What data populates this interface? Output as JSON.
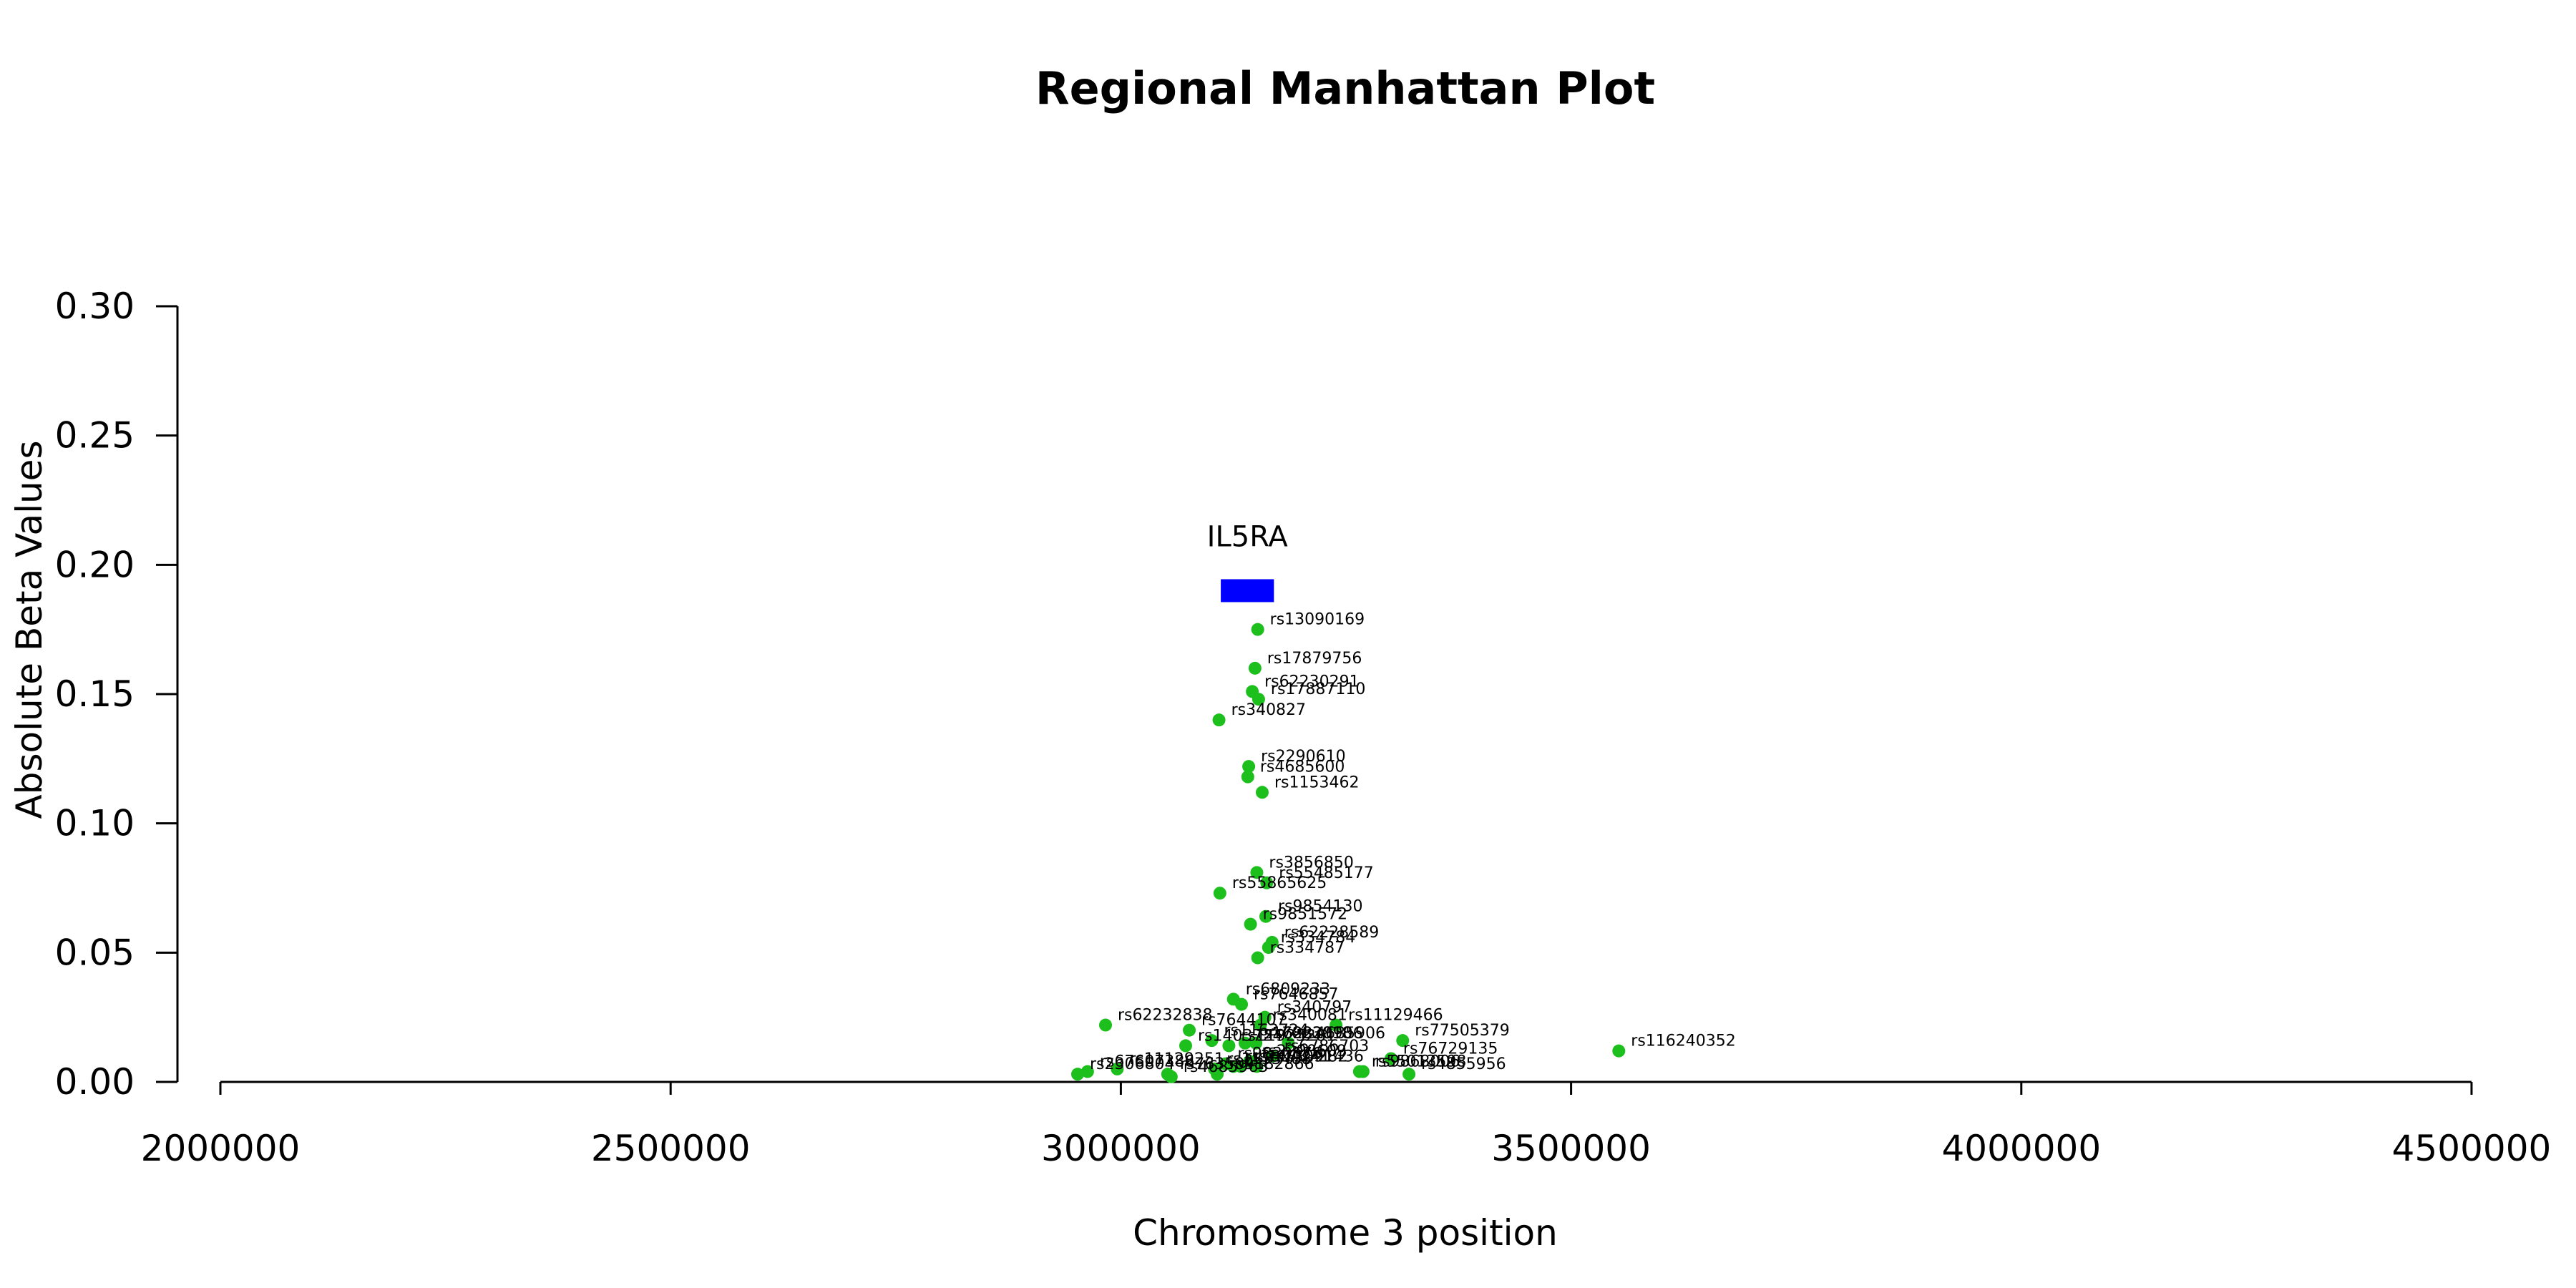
{
  "chart_data": {
    "type": "scatter",
    "title": "Regional Manhattan Plot",
    "xlabel": "Chromosome 3 position",
    "ylabel": "Absolute Beta Values",
    "xlim": [
      2000000,
      4500000
    ],
    "ylim": [
      0,
      0.3
    ],
    "xticks": [
      2000000,
      2500000,
      3000000,
      3500000,
      4000000,
      4500000
    ],
    "yticks": [
      0.0,
      0.05,
      0.1,
      0.15,
      0.2,
      0.25,
      0.3
    ],
    "xtick_labels": [
      "2000000",
      "2500000",
      "3000000",
      "3500000",
      "4000000",
      "4500000"
    ],
    "ytick_labels": [
      "0.00",
      "0.05",
      "0.10",
      "0.15",
      "0.20",
      "0.25",
      "0.30"
    ],
    "grid": false,
    "point_color": "#1dbf1d",
    "gene": {
      "name": "IL5RA",
      "start": 3111000,
      "end": 3170000,
      "y": 0.19,
      "color": "#0000ff"
    },
    "points": [
      {
        "id": "rs13090169",
        "x": 3152000,
        "y": 0.175
      },
      {
        "id": "rs17879756",
        "x": 3149000,
        "y": 0.16
      },
      {
        "id": "rs62230291",
        "x": 3146000,
        "y": 0.151
      },
      {
        "id": "rs17887110",
        "x": 3153000,
        "y": 0.148
      },
      {
        "id": "rs340827",
        "x": 3109000,
        "y": 0.14
      },
      {
        "id": "rs2290610",
        "x": 3142000,
        "y": 0.122
      },
      {
        "id": "rs4685600",
        "x": 3141000,
        "y": 0.118
      },
      {
        "id": "rs1153462",
        "x": 3157000,
        "y": 0.112
      },
      {
        "id": "rs3856850",
        "x": 3151000,
        "y": 0.081
      },
      {
        "id": "rs55485177",
        "x": 3162000,
        "y": 0.077
      },
      {
        "id": "rs55865625",
        "x": 3110000,
        "y": 0.073
      },
      {
        "id": "rs9854130",
        "x": 3161000,
        "y": 0.064
      },
      {
        "id": "rs9851572",
        "x": 3144000,
        "y": 0.061
      },
      {
        "id": "rs62228589",
        "x": 3168000,
        "y": 0.054
      },
      {
        "id": "rs334784",
        "x": 3164000,
        "y": 0.052
      },
      {
        "id": "rs334787",
        "x": 3152000,
        "y": 0.048
      },
      {
        "id": "rs6809233",
        "x": 3125000,
        "y": 0.032
      },
      {
        "id": "rs7646857",
        "x": 3134000,
        "y": 0.03
      },
      {
        "id": "rs340797",
        "x": 3160000,
        "y": 0.025
      },
      {
        "id": "rs11129466",
        "x": 3239000,
        "y": 0.022
      },
      {
        "id": "rs62232838",
        "x": 2983000,
        "y": 0.022
      },
      {
        "id": "rs7644107",
        "x": 3076000,
        "y": 0.02
      },
      {
        "id": "rs340081",
        "x": 3155000,
        "y": 0.022
      },
      {
        "id": "rs77505379",
        "x": 3313000,
        "y": 0.016
      },
      {
        "id": "rs1163724",
        "x": 3101000,
        "y": 0.016
      },
      {
        "id": "rs62228906",
        "x": 3150000,
        "y": 0.015
      },
      {
        "id": "rs11925281",
        "x": 3120000,
        "y": 0.014
      },
      {
        "id": "rs17883018",
        "x": 3138000,
        "y": 0.015
      },
      {
        "id": "rs4685906",
        "x": 3186000,
        "y": 0.015
      },
      {
        "id": "rs1403724",
        "x": 3072000,
        "y": 0.014
      },
      {
        "id": "rs116240352",
        "x": 3553000,
        "y": 0.012
      },
      {
        "id": "rs76729135",
        "x": 3300000,
        "y": 0.009
      },
      {
        "id": "rs6786703",
        "x": 3168000,
        "y": 0.01
      },
      {
        "id": "rs2290609",
        "x": 3143000,
        "y": 0.008
      },
      {
        "id": "rs11129251",
        "x": 2996000,
        "y": 0.005
      },
      {
        "id": "rs9830676",
        "x": 3116000,
        "y": 0.007
      },
      {
        "id": "rs11707282",
        "x": 3133000,
        "y": 0.006
      },
      {
        "id": "rs1153488",
        "x": 3104000,
        "y": 0.005
      },
      {
        "id": "rs3804241",
        "x": 3125000,
        "y": 0.006
      },
      {
        "id": "rs13091436",
        "x": 3151000,
        "y": 0.006
      },
      {
        "id": "rs67607386",
        "x": 2963000,
        "y": 0.004
      },
      {
        "id": "rs2306804",
        "x": 2952000,
        "y": 0.003
      },
      {
        "id": "rs7635041",
        "x": 3052000,
        "y": 0.003
      },
      {
        "id": "rs9882866",
        "x": 3107000,
        "y": 0.003
      },
      {
        "id": "rs55013598",
        "x": 3265000,
        "y": 0.004
      },
      {
        "id": "rs9868006",
        "x": 3269000,
        "y": 0.004
      },
      {
        "id": "rs4855956",
        "x": 3320000,
        "y": 0.003
      },
      {
        "id": "rs4685963",
        "x": 3056000,
        "y": 0.002
      }
    ]
  }
}
